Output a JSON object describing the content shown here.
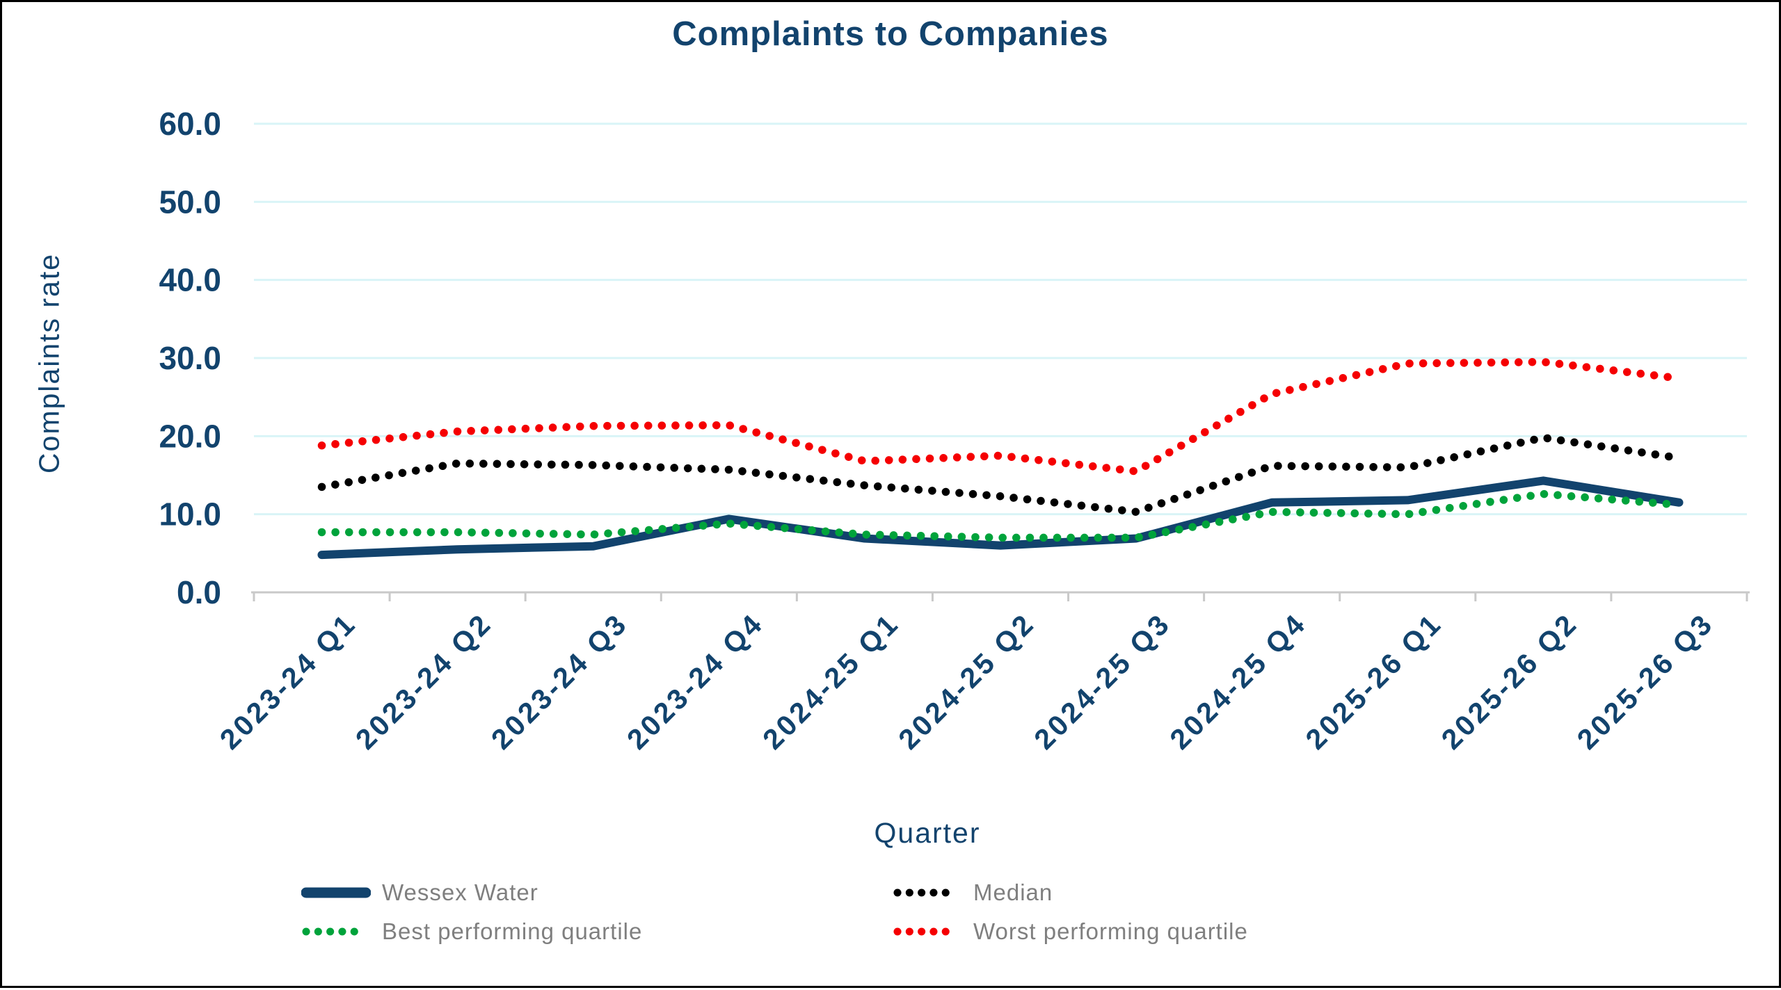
{
  "title": "Complaints to Companies",
  "colors": {
    "navy": "#12436D",
    "black": "#000000",
    "green": "#00A33B",
    "red": "#F50002",
    "gridline": "#D9F4F7",
    "axis_gray": "#C9C9C9",
    "legend_text": "#7F7F7F",
    "background": "#FFFFFF",
    "page_border": "#000000"
  },
  "chart_data": {
    "type": "line",
    "title": "Complaints to Companies",
    "xlabel": "Quarter",
    "ylabel": "Complaints rate",
    "ylim": [
      0,
      60
    ],
    "ytick_step": 10,
    "ytick_labels": [
      "0.0",
      "10.0",
      "20.0",
      "30.0",
      "40.0",
      "50.0",
      "60.0"
    ],
    "grid": "horizontal",
    "legend_position": "bottom",
    "categories": [
      "2023-24 Q1",
      "2023-24 Q2",
      "2023-24 Q3",
      "2023-24 Q4",
      "2024-25 Q1",
      "2024-25 Q2",
      "2024-25 Q3",
      "2024-25 Q4",
      "2025-26 Q1",
      "2025-26 Q2",
      "2025-26 Q3"
    ],
    "series": [
      {
        "name": "Wessex Water",
        "style": "solid",
        "color": "#12436D",
        "values": [
          4.8,
          5.5,
          5.9,
          9.4,
          6.9,
          6.0,
          6.9,
          11.5,
          11.8,
          14.3,
          11.5
        ]
      },
      {
        "name": "Median",
        "style": "dotted",
        "color": "#000000",
        "values": [
          13.5,
          16.5,
          16.3,
          15.7,
          13.7,
          12.3,
          10.3,
          16.2,
          16.0,
          19.8,
          17.2
        ]
      },
      {
        "name": "Best performing quartile",
        "style": "dotted",
        "color": "#00A33B",
        "values": [
          7.7,
          7.7,
          7.4,
          8.8,
          7.4,
          7.0,
          7.0,
          10.3,
          10.0,
          12.6,
          11.2
        ]
      },
      {
        "name": "Worst performing quartile",
        "style": "dotted",
        "color": "#F50002",
        "values": [
          18.8,
          20.6,
          21.3,
          21.4,
          16.8,
          17.5,
          15.5,
          25.4,
          29.3,
          29.5,
          27.4
        ]
      }
    ],
    "legend_order": [
      0,
      1,
      2,
      3
    ]
  }
}
